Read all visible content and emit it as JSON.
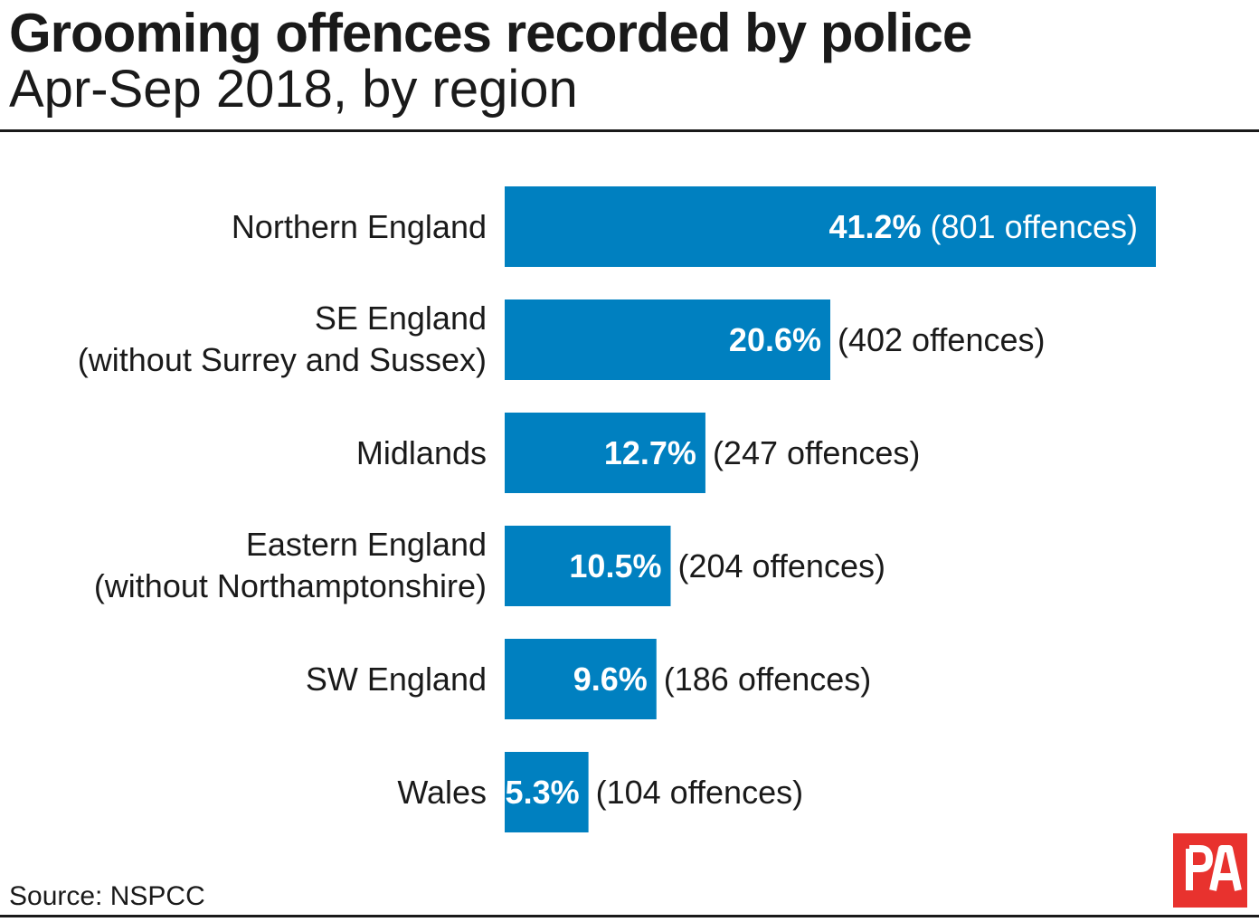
{
  "chart_data": {
    "type": "bar",
    "orientation": "horizontal",
    "title": "Grooming offences recorded by police",
    "subtitle": "Apr-Sep 2018, by region",
    "categories": [
      [
        "Northern England"
      ],
      [
        "SE England",
        "(without Surrey and Sussex)"
      ],
      [
        "Midlands"
      ],
      [
        "Eastern England",
        "(without Northamptonshire)"
      ],
      [
        "SW England"
      ],
      [
        "Wales"
      ]
    ],
    "values": [
      41.2,
      20.6,
      12.7,
      10.5,
      9.6,
      5.3
    ],
    "value_labels": [
      "41.2%",
      "20.6%",
      "12.7%",
      "10.5%",
      "9.6%",
      "5.3%"
    ],
    "counts": [
      801,
      402,
      247,
      204,
      186,
      104
    ],
    "count_labels": [
      "(801 offences)",
      "(402 offences)",
      "(247 offences)",
      "(204 offences)",
      "(186 offences)",
      "(104 offences)"
    ],
    "bar_color": "#0080c0",
    "grid": false,
    "legend": "none"
  },
  "source": "Source: NSPCC",
  "logo": {
    "text": "PA",
    "color": "#e8322e"
  }
}
